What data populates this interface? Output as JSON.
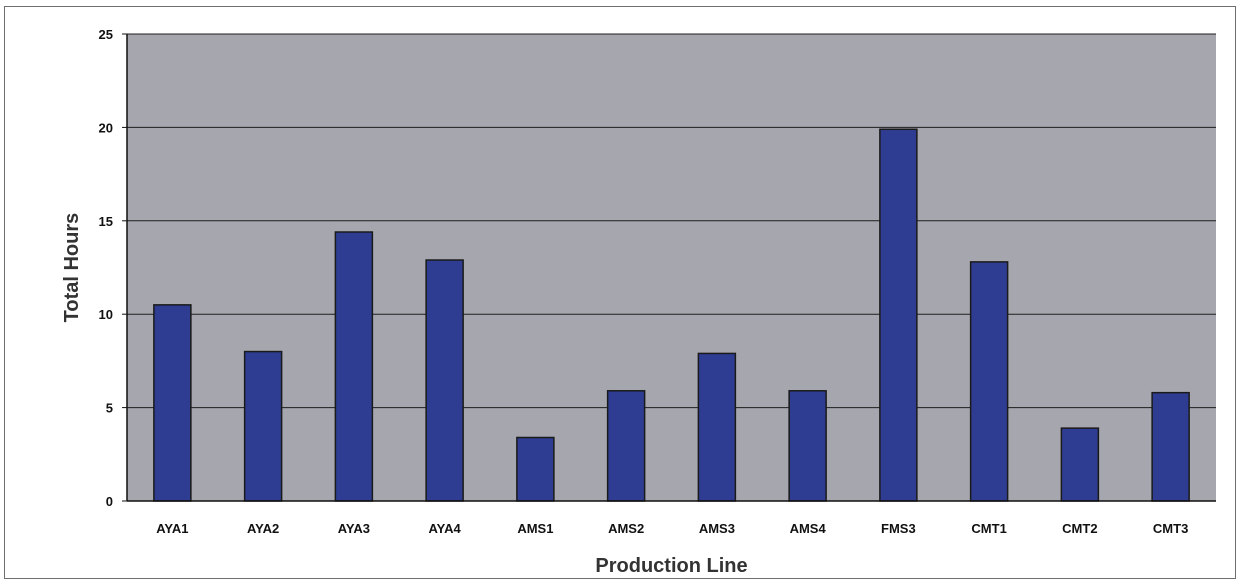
{
  "chart_data": {
    "type": "bar",
    "title": "",
    "xlabel": "Production Line",
    "ylabel": "Total Hours",
    "categories": [
      "AYA1",
      "AYA2",
      "AYA3",
      "AYA4",
      "AMS1",
      "AMS2",
      "AMS3",
      "AMS4",
      "FMS3",
      "CMT1",
      "CMT2",
      "CMT3"
    ],
    "values": [
      10.5,
      8.0,
      14.4,
      12.9,
      3.4,
      5.9,
      7.9,
      5.9,
      19.9,
      12.8,
      3.9,
      5.8
    ],
    "ylim": [
      0,
      25
    ],
    "yticks": [
      "0",
      "5",
      "10",
      "15",
      "20",
      "25"
    ],
    "grid": true,
    "legend": "none",
    "colors": {
      "bar": "#2e3d91",
      "bar_edge": "#1a1a1a",
      "plot_background": "#a6a6ae",
      "gridline": "#1e1e1e"
    }
  }
}
